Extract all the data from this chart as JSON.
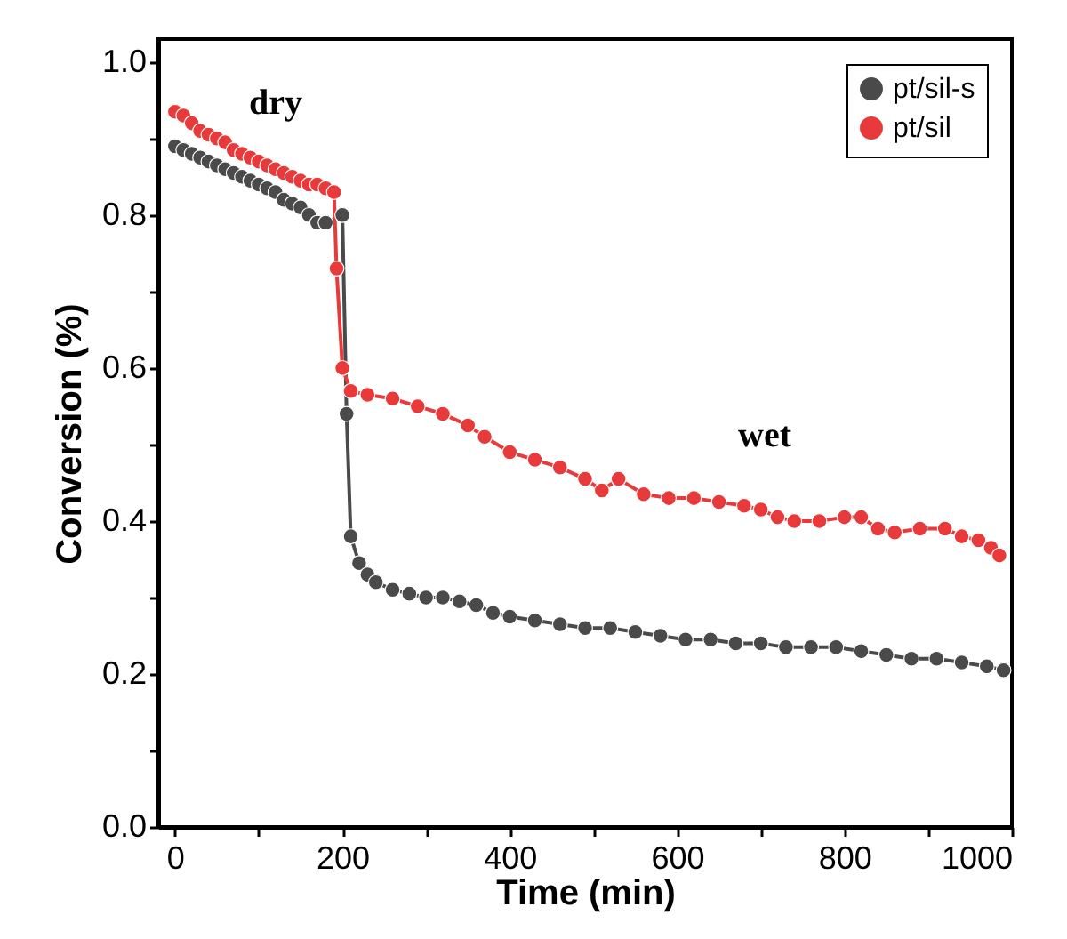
{
  "chart_data": {
    "type": "line",
    "xlabel": "Time (min)",
    "ylabel": "Conversion (%)",
    "xlim": [
      -20,
      1000
    ],
    "ylim": [
      0,
      1.03
    ],
    "xticks": [
      0,
      {
        "value": 100,
        "label": null
      },
      200,
      {
        "value": 300,
        "label": null
      },
      400,
      {
        "value": 500,
        "label": null
      },
      600,
      {
        "value": 700,
        "label": null
      },
      800,
      {
        "value": 900,
        "label": null
      },
      1000
    ],
    "yticks": [
      {
        "value": 0,
        "label": "0.0"
      },
      {
        "value": 0.1,
        "label": null
      },
      0.2,
      {
        "value": 0.3,
        "label": null
      },
      0.4,
      {
        "value": 0.5,
        "label": null
      },
      0.6,
      {
        "value": 0.7,
        "label": null
      },
      0.8,
      {
        "value": 0.9,
        "label": null
      },
      {
        "value": 1,
        "label": "1.0"
      }
    ],
    "grid": false,
    "legend": "top right",
    "marker": "circle",
    "line_style": "solid",
    "annotations": [
      "dry",
      "wet"
    ],
    "x": [
      0,
      10,
      20,
      30,
      40,
      50,
      60,
      70,
      80,
      90,
      100,
      110,
      120,
      130,
      140,
      150,
      160,
      170,
      180,
      200,
      205,
      210,
      220,
      230,
      240,
      260,
      280,
      300,
      320,
      340,
      360,
      380,
      400,
      430,
      460,
      490,
      520,
      550,
      580,
      610,
      640,
      670,
      700,
      730,
      760,
      790,
      820,
      850,
      880,
      910,
      940,
      970,
      990
    ],
    "series": [
      {
        "name": "pt/sil-s",
        "color": "#4a4a4a",
        "values": [
          0.89,
          0.885,
          0.88,
          0.875,
          0.87,
          0.865,
          0.86,
          0.855,
          0.85,
          0.845,
          0.84,
          0.835,
          0.83,
          0.82,
          0.815,
          0.81,
          0.8,
          0.79,
          0.79,
          0.8,
          0.54,
          0.38,
          0.345,
          0.33,
          0.32,
          0.31,
          0.305,
          0.3,
          0.3,
          0.295,
          0.29,
          0.28,
          0.275,
          0.27,
          0.265,
          0.26,
          0.26,
          0.255,
          0.25,
          0.245,
          0.245,
          0.24,
          0.24,
          0.235,
          0.235,
          0.235,
          0.23,
          0.225,
          0.22,
          0.22,
          0.215,
          0.21,
          0.205
        ]
      },
      {
        "name": "pt/sil",
        "color": "#e83a3a",
        "x": [
          0,
          10,
          20,
          30,
          40,
          50,
          60,
          70,
          80,
          90,
          100,
          110,
          120,
          130,
          140,
          150,
          160,
          170,
          180,
          190,
          193,
          200,
          210,
          230,
          260,
          290,
          320,
          350,
          370,
          400,
          430,
          460,
          490,
          510,
          530,
          560,
          590,
          620,
          650,
          680,
          700,
          720,
          740,
          770,
          800,
          820,
          840,
          860,
          890,
          920,
          940,
          960,
          975,
          985
        ],
        "values": [
          0.935,
          0.93,
          0.92,
          0.91,
          0.905,
          0.9,
          0.895,
          0.885,
          0.88,
          0.875,
          0.87,
          0.865,
          0.86,
          0.855,
          0.85,
          0.845,
          0.84,
          0.84,
          0.835,
          0.83,
          0.73,
          0.6,
          0.57,
          0.565,
          0.56,
          0.55,
          0.54,
          0.525,
          0.51,
          0.49,
          0.48,
          0.47,
          0.455,
          0.44,
          0.455,
          0.435,
          0.43,
          0.43,
          0.425,
          0.42,
          0.415,
          0.405,
          0.4,
          0.4,
          0.405,
          0.405,
          0.39,
          0.385,
          0.39,
          0.39,
          0.38,
          0.375,
          0.365,
          0.355
        ]
      }
    ]
  }
}
